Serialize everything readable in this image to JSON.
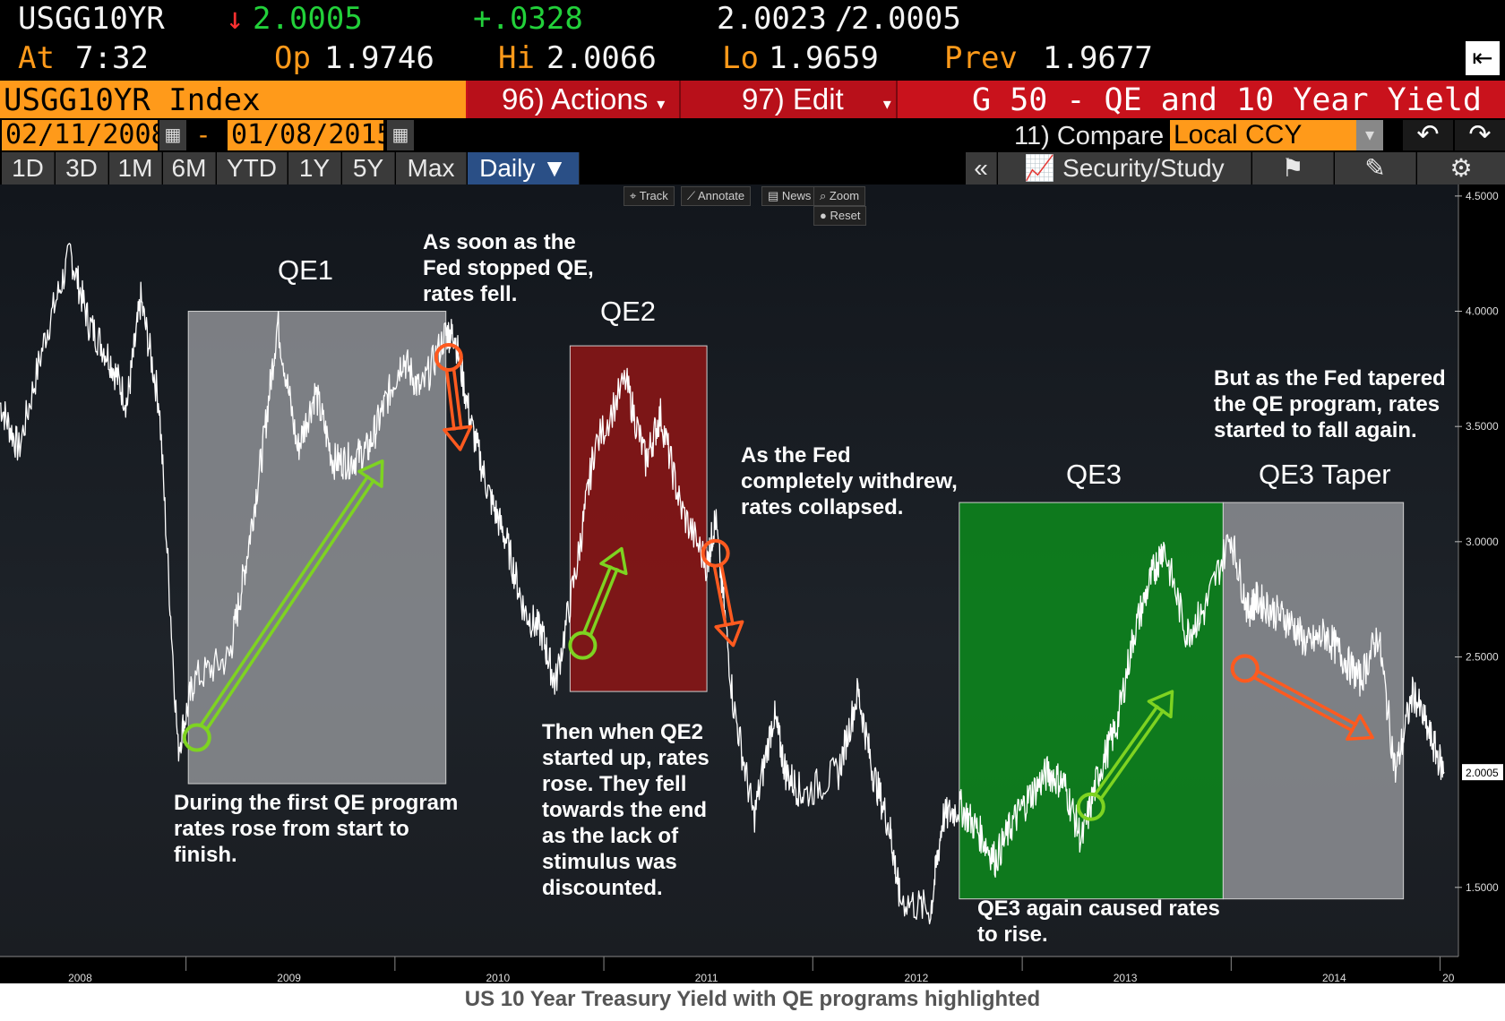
{
  "header": {
    "ticker": "USGG10YR",
    "arrow": "↓",
    "last": "2.0005",
    "change": "+.0328",
    "bid": "2.0023",
    "slash": "/",
    "ask": "2.0005",
    "at_label": "At",
    "time": "7:32",
    "op_label": "Op",
    "open": "1.9746",
    "hi_label": "Hi",
    "high": "2.0066",
    "lo_label": "Lo",
    "low": "1.9659",
    "prev_label": "Prev",
    "prev": "1.9677",
    "export_icon": "export-icon"
  },
  "menu": {
    "security": "USGG10YR Index",
    "actions": "96) Actions",
    "edit": "97) Edit",
    "title": "G 50 - QE and 10 Year Yield"
  },
  "range": {
    "start": "02/11/2008",
    "dash": "-",
    "end": "01/08/2015",
    "compare": "11) Compare",
    "currency": "Local CCY"
  },
  "toolbar": {
    "periods": [
      "1D",
      "3D",
      "1M",
      "6M",
      "YTD",
      "1Y",
      "5Y",
      "Max"
    ],
    "frequency": "Daily ▼",
    "collapse": "«",
    "security_study": "Security/Study"
  },
  "chart_tools": [
    "Track",
    "Annotate",
    "News",
    "Zoom",
    "Reset"
  ],
  "chart_data": {
    "type": "line",
    "title": "G 50 - QE and 10 Year Yield",
    "series": [
      {
        "name": "USGG10YR",
        "x_start": "2008-02-11",
        "x_end": "2015-01-08"
      }
    ],
    "x_ticks": [
      "2008",
      "2009",
      "2010",
      "2011",
      "2012",
      "2013",
      "2014",
      "20"
    ],
    "y_ticks": [
      "4.5000",
      "4.0000",
      "3.5000",
      "3.0000",
      "2.5000",
      "1.5000"
    ],
    "ylim": [
      1.2,
      4.55
    ],
    "last_value_label": "2.0005",
    "points": [
      [
        "2008-02-11",
        3.6
      ],
      [
        "2008-03-15",
        3.4
      ],
      [
        "2008-05-01",
        3.9
      ],
      [
        "2008-06-13",
        4.25
      ],
      [
        "2008-07-15",
        3.95
      ],
      [
        "2008-08-20",
        3.8
      ],
      [
        "2008-09-20",
        3.6
      ],
      [
        "2008-10-14",
        4.05
      ],
      [
        "2008-11-15",
        3.6
      ],
      [
        "2008-12-18",
        2.1
      ],
      [
        "2009-01-15",
        2.4
      ],
      [
        "2009-03-18",
        2.5
      ],
      [
        "2009-04-15",
        2.9
      ],
      [
        "2009-05-15",
        3.4
      ],
      [
        "2009-06-10",
        3.95
      ],
      [
        "2009-07-15",
        3.4
      ],
      [
        "2009-08-15",
        3.65
      ],
      [
        "2009-09-15",
        3.35
      ],
      [
        "2009-10-15",
        3.35
      ],
      [
        "2009-11-15",
        3.4
      ],
      [
        "2009-12-15",
        3.6
      ],
      [
        "2010-01-15",
        3.8
      ],
      [
        "2010-02-15",
        3.65
      ],
      [
        "2010-03-30",
        3.9
      ],
      [
        "2010-04-15",
        3.9
      ],
      [
        "2010-05-15",
        3.5
      ],
      [
        "2010-06-15",
        3.2
      ],
      [
        "2010-07-15",
        3.0
      ],
      [
        "2010-08-15",
        2.7
      ],
      [
        "2010-09-15",
        2.6
      ],
      [
        "2010-10-08",
        2.38
      ],
      [
        "2010-11-15",
        2.9
      ],
      [
        "2010-12-15",
        3.4
      ],
      [
        "2011-02-08",
        3.7
      ],
      [
        "2011-03-15",
        3.35
      ],
      [
        "2011-04-10",
        3.55
      ],
      [
        "2011-05-15",
        3.15
      ],
      [
        "2011-06-30",
        2.9
      ],
      [
        "2011-07-15",
        3.1
      ],
      [
        "2011-08-15",
        2.3
      ],
      [
        "2011-09-20",
        1.8
      ],
      [
        "2011-10-25",
        2.25
      ],
      [
        "2011-11-15",
        2.0
      ],
      [
        "2011-12-15",
        1.9
      ],
      [
        "2012-02-15",
        2.0
      ],
      [
        "2012-03-20",
        2.35
      ],
      [
        "2012-04-15",
        2.0
      ],
      [
        "2012-05-15",
        1.75
      ],
      [
        "2012-06-01",
        1.45
      ],
      [
        "2012-07-25",
        1.4
      ],
      [
        "2012-08-15",
        1.8
      ],
      [
        "2012-09-15",
        1.85
      ],
      [
        "2012-10-15",
        1.75
      ],
      [
        "2012-11-15",
        1.62
      ],
      [
        "2012-12-15",
        1.78
      ],
      [
        "2013-01-15",
        1.9
      ],
      [
        "2013-02-15",
        2.0
      ],
      [
        "2013-03-15",
        1.95
      ],
      [
        "2013-04-15",
        1.7
      ],
      [
        "2013-05-15",
        2.0
      ],
      [
        "2013-06-15",
        2.2
      ],
      [
        "2013-07-15",
        2.6
      ],
      [
        "2013-08-15",
        2.85
      ],
      [
        "2013-09-05",
        2.98
      ],
      [
        "2013-10-15",
        2.6
      ],
      [
        "2013-11-15",
        2.7
      ],
      [
        "2013-12-31",
        3.03
      ],
      [
        "2014-01-30",
        2.7
      ],
      [
        "2014-02-15",
        2.75
      ],
      [
        "2014-03-15",
        2.7
      ],
      [
        "2014-04-15",
        2.65
      ],
      [
        "2014-05-15",
        2.55
      ],
      [
        "2014-06-15",
        2.6
      ],
      [
        "2014-07-15",
        2.5
      ],
      [
        "2014-08-15",
        2.4
      ],
      [
        "2014-09-15",
        2.6
      ],
      [
        "2014-10-15",
        2.0
      ],
      [
        "2014-11-15",
        2.35
      ],
      [
        "2014-12-15",
        2.15
      ],
      [
        "2015-01-08",
        2.0
      ]
    ],
    "regions": [
      {
        "label": "QE1",
        "start": "2009-01-05",
        "end": "2010-03-31",
        "ymin": 1.95,
        "ymax": 4.0,
        "color": "#8e9095"
      },
      {
        "label": "QE2",
        "start": "2010-11-03",
        "end": "2011-06-30",
        "ymin": 2.35,
        "ymax": 3.85,
        "color": "#8e1515"
      },
      {
        "label": "QE3",
        "start": "2012-09-13",
        "end": "2013-12-18",
        "ymin": 1.45,
        "ymax": 3.17,
        "color": "#0c8a1c"
      },
      {
        "label": "QE3 Taper",
        "start": "2013-12-18",
        "end": "2014-10-29",
        "ymin": 1.45,
        "ymax": 3.17,
        "color": "#8e9095"
      }
    ],
    "arrows": [
      {
        "kind": "up",
        "color": "#7ed321",
        "from": [
          "2009-01-20",
          2.15
        ],
        "to": [
          "2009-12-10",
          3.35
        ]
      },
      {
        "kind": "down",
        "color": "#ff5a1f",
        "from": [
          "2010-04-05",
          3.8
        ],
        "to": [
          "2010-04-25",
          3.4
        ]
      },
      {
        "kind": "up",
        "color": "#7ed321",
        "from": [
          "2010-11-25",
          2.55
        ],
        "to": [
          "2011-02-01",
          2.97
        ]
      },
      {
        "kind": "down",
        "color": "#ff5a1f",
        "from": [
          "2011-07-15",
          2.95
        ],
        "to": [
          "2011-08-15",
          2.55
        ]
      },
      {
        "kind": "up",
        "color": "#7ed321",
        "from": [
          "2013-05-01",
          1.85
        ],
        "to": [
          "2013-09-20",
          2.35
        ]
      },
      {
        "kind": "down",
        "color": "#ff5a1f",
        "from": [
          "2014-01-25",
          2.45
        ],
        "to": [
          "2014-09-05",
          2.15
        ]
      }
    ]
  },
  "annotations": {
    "qe1": "QE1",
    "qe2": "QE2",
    "qe3": "QE3",
    "qe3_taper": "QE3 Taper",
    "stopped": "As soon as the\nFed stopped QE,\nrates fell.",
    "qe1_note": "During the first QE program\nrates rose from start to\nfinish.",
    "qe2_note": "Then when QE2\nstarted up, rates\nrose.  They fell\ntowards the end\nas the lack of\nstimulus was\ndiscounted.",
    "withdrew": "As the Fed\ncompletely withdrew,\nrates collapsed.",
    "qe3_note": "QE3 again caused rates\nto rise.",
    "taper_note": "But as the Fed tapered\nthe QE program, rates\nstarted to fall again."
  },
  "caption": "US 10 Year Treasury Yield with QE programs highlighted"
}
